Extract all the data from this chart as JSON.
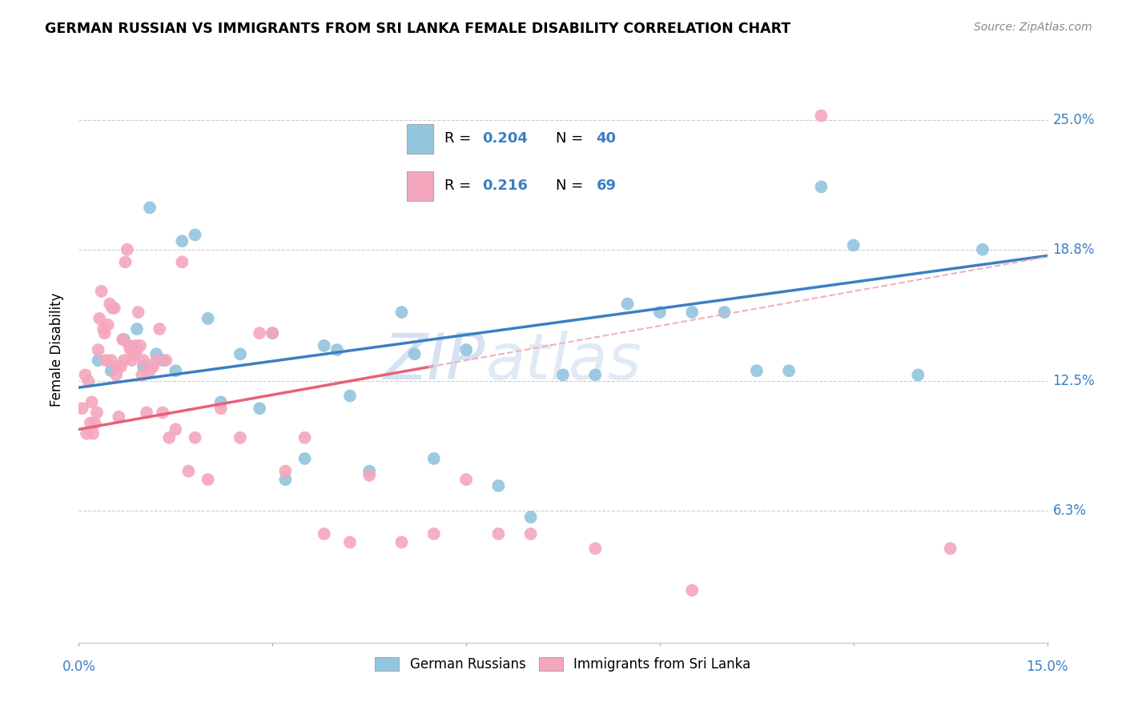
{
  "title": "GERMAN RUSSIAN VS IMMIGRANTS FROM SRI LANKA FEMALE DISABILITY CORRELATION CHART",
  "source": "Source: ZipAtlas.com",
  "ylabel": "Female Disability",
  "yticks": [
    6.3,
    12.5,
    18.8,
    25.0
  ],
  "ytick_labels": [
    "6.3%",
    "12.5%",
    "18.8%",
    "25.0%"
  ],
  "xmin": 0.0,
  "xmax": 15.0,
  "ymin": 0.0,
  "ymax": 27.0,
  "legend_r1": "0.204",
  "legend_n1": "40",
  "legend_r2": "0.216",
  "legend_n2": "69",
  "legend_label1": "German Russians",
  "legend_label2": "Immigrants from Sri Lanka",
  "blue_color": "#92c5de",
  "pink_color": "#f4a6bd",
  "blue_line_color": "#3b7fc4",
  "pink_line_color": "#e8607a",
  "pink_dash_color": "#f0b0c0",
  "watermark_color": "#ccddf0",
  "tick_color": "#3b7fc4",
  "blue_x": [
    0.3,
    0.5,
    0.7,
    0.9,
    1.0,
    1.1,
    1.2,
    1.3,
    1.5,
    1.6,
    1.8,
    2.0,
    2.2,
    2.5,
    2.8,
    3.0,
    3.2,
    3.5,
    3.8,
    4.0,
    4.2,
    4.5,
    5.0,
    5.2,
    5.5,
    6.0,
    6.5,
    7.0,
    7.5,
    8.0,
    8.5,
    9.0,
    9.5,
    10.0,
    10.5,
    11.0,
    11.5,
    12.0,
    13.0,
    14.0
  ],
  "blue_y": [
    13.5,
    13.0,
    14.5,
    15.0,
    13.2,
    20.8,
    13.8,
    13.5,
    13.0,
    19.2,
    19.5,
    15.5,
    11.5,
    13.8,
    11.2,
    14.8,
    7.8,
    8.8,
    14.2,
    14.0,
    11.8,
    8.2,
    15.8,
    13.8,
    8.8,
    14.0,
    7.5,
    6.0,
    12.8,
    12.8,
    16.2,
    15.8,
    15.8,
    15.8,
    13.0,
    13.0,
    21.8,
    19.0,
    12.8,
    18.8
  ],
  "pink_x": [
    0.05,
    0.1,
    0.12,
    0.15,
    0.18,
    0.2,
    0.22,
    0.25,
    0.28,
    0.3,
    0.32,
    0.35,
    0.38,
    0.4,
    0.42,
    0.45,
    0.48,
    0.5,
    0.52,
    0.55,
    0.58,
    0.6,
    0.62,
    0.65,
    0.68,
    0.7,
    0.72,
    0.75,
    0.78,
    0.8,
    0.82,
    0.85,
    0.88,
    0.9,
    0.92,
    0.95,
    0.98,
    1.0,
    1.05,
    1.1,
    1.15,
    1.2,
    1.25,
    1.3,
    1.35,
    1.4,
    1.5,
    1.6,
    1.7,
    1.8,
    2.0,
    2.2,
    2.5,
    2.8,
    3.0,
    3.2,
    3.5,
    3.8,
    4.2,
    4.5,
    5.0,
    5.5,
    6.0,
    6.5,
    7.0,
    8.0,
    9.5,
    11.5,
    13.5
  ],
  "pink_y": [
    11.2,
    12.8,
    10.0,
    12.5,
    10.5,
    11.5,
    10.0,
    10.5,
    11.0,
    14.0,
    15.5,
    16.8,
    15.0,
    14.8,
    13.5,
    15.2,
    16.2,
    13.5,
    16.0,
    16.0,
    12.8,
    13.2,
    10.8,
    13.2,
    14.5,
    13.5,
    18.2,
    18.8,
    14.2,
    14.0,
    13.5,
    13.8,
    14.2,
    14.0,
    15.8,
    14.2,
    12.8,
    13.5,
    11.0,
    13.0,
    13.2,
    13.5,
    15.0,
    11.0,
    13.5,
    9.8,
    10.2,
    18.2,
    8.2,
    9.8,
    7.8,
    11.2,
    9.8,
    14.8,
    14.8,
    8.2,
    9.8,
    5.2,
    4.8,
    8.0,
    4.8,
    5.2,
    7.8,
    5.2,
    5.2,
    4.5,
    2.5,
    25.2,
    4.5
  ]
}
